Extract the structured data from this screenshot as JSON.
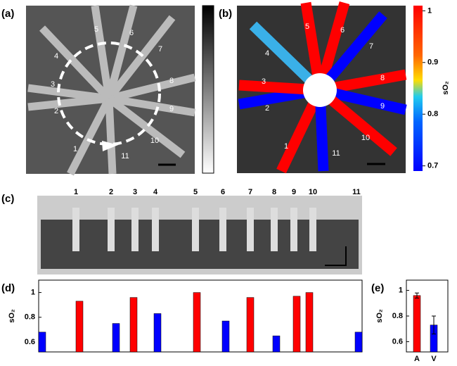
{
  "panel_labels": [
    "(a)",
    "(b)",
    "(c)",
    "(d)",
    "(e)"
  ],
  "image_a": {
    "vessel_labels": [
      "1",
      "2",
      "3",
      "4",
      "5",
      "6",
      "7",
      "8",
      "9",
      "10",
      "11"
    ]
  },
  "image_b": {
    "vessel_labels": [
      "1",
      "2",
      "3",
      "4",
      "5",
      "6",
      "7",
      "8",
      "9",
      "10",
      "11"
    ],
    "colorbar": {
      "label": "sO₂",
      "lim": [
        0.69,
        1.01
      ],
      "ticks": [
        1,
        0.9,
        0.8,
        0.7
      ]
    }
  },
  "image_c": {
    "vessel_labels": [
      "1",
      "2",
      "3",
      "4",
      "5",
      "6",
      "7",
      "8",
      "9",
      "10",
      "11"
    ]
  },
  "chart_data": [
    {
      "type": "bar",
      "ylabel": "sO₂",
      "categories": [
        null,
        null,
        null,
        null,
        null,
        null,
        null,
        null,
        null,
        null,
        null,
        null
      ],
      "values": [
        0.68,
        0.93,
        0.75,
        0.96,
        0.83,
        1.0,
        0.77,
        0.96,
        0.65,
        0.97,
        1.0,
        0.68
      ],
      "colors": [
        "#0000ff",
        "#ff0000",
        "#0000ff",
        "#ff0000",
        "#0000ff",
        "#ff0000",
        "#0000ff",
        "#ff0000",
        "#0000ff",
        "#ff0000",
        "#ff0000",
        "#0000ff"
      ],
      "ylim": [
        0.52,
        1.1
      ],
      "yticks": [
        0.6,
        0.8,
        1
      ]
    },
    {
      "type": "bar",
      "ylabel": "sO₂",
      "categories": [
        "A",
        "V"
      ],
      "values": [
        0.96,
        0.73
      ],
      "errors": [
        0.02,
        0.07
      ],
      "colors": [
        "#ff0000",
        "#0000ff"
      ],
      "ylim": [
        0.52,
        1.08
      ],
      "yticks": [
        0.6,
        0.8,
        1
      ]
    }
  ]
}
